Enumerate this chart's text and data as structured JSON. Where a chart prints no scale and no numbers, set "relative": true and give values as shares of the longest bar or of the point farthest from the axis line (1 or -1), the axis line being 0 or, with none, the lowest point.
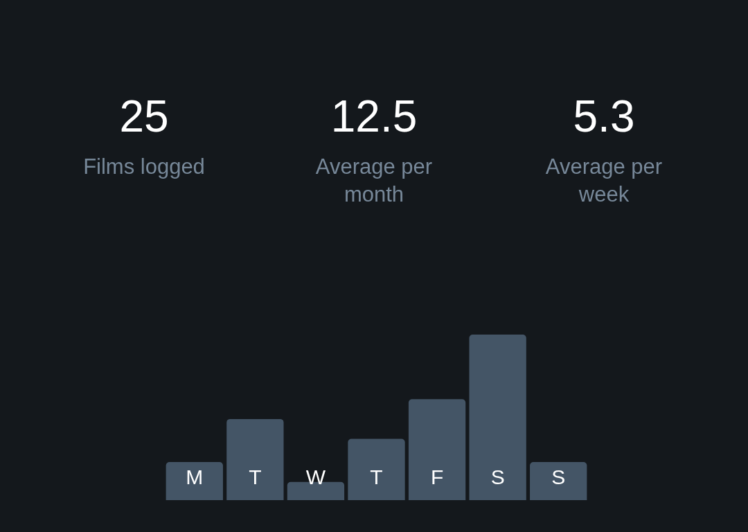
{
  "chart_data": [
    {
      "type": "other",
      "categories": [
        "Films logged",
        "Average per month",
        "Average per week"
      ],
      "values": [
        25,
        12.5,
        5.3
      ],
      "data_labels": true
    },
    {
      "type": "bar",
      "categories": [
        "M",
        "T",
        "W",
        "T",
        "F",
        "S",
        "S"
      ],
      "values": [
        0.23,
        0.49,
        0.11,
        0.37,
        0.61,
        1,
        0.23
      ],
      "color": "#445566",
      "relative": true
    }
  ]
}
